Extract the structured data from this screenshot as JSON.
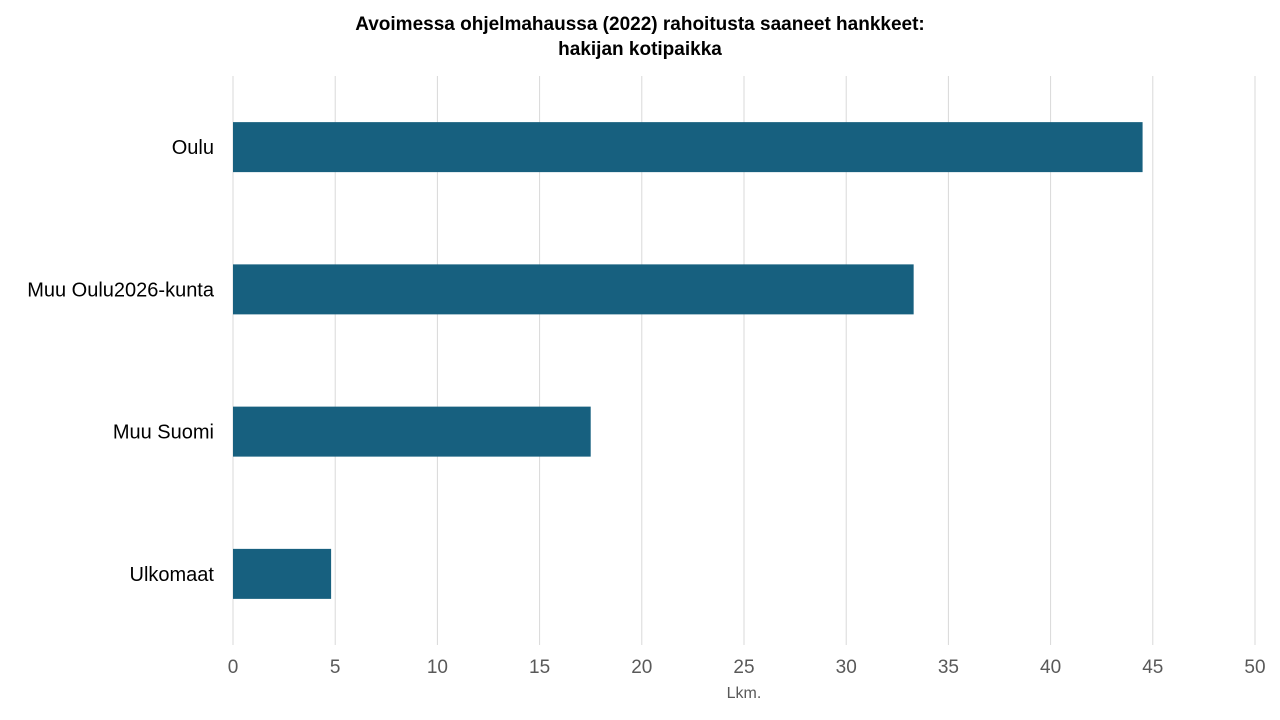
{
  "chart_data": {
    "type": "bar",
    "orientation": "horizontal",
    "title_lines": [
      "Avoimessa ohjelmahaussa (2022) rahoitusta saaneet hankkeet:",
      "hakijan kotipaikka"
    ],
    "categories": [
      "Oulu",
      "Muu Oulu2026-kunta",
      "Muu Suomi",
      "Ulkomaat"
    ],
    "values": [
      44.5,
      33.3,
      17.5,
      4.8
    ],
    "xlabel": "Lkm.",
    "ylabel": "",
    "xlim": [
      0,
      50
    ],
    "x_ticks": [
      0,
      5,
      10,
      15,
      20,
      25,
      30,
      35,
      40,
      45,
      50
    ],
    "grid": "vertical",
    "legend": "none",
    "bar_color": "#17607f",
    "grid_color": "#d9d9d9"
  }
}
